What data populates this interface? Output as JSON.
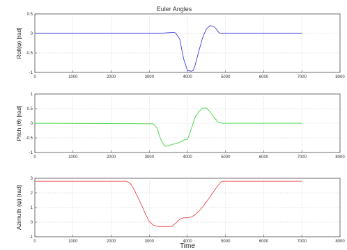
{
  "chart_data": [
    {
      "type": "line",
      "title": "Euler Angles",
      "ylabel": "Roll(φ) [rad]",
      "xlabel": "",
      "xlim": [
        0,
        8000
      ],
      "ylim": [
        -1,
        0.5
      ],
      "xticks": [
        0,
        1000,
        2000,
        3000,
        4000,
        5000,
        6000,
        7000,
        8000
      ],
      "yticks": [
        0.5,
        0,
        -0.5,
        -1
      ],
      "ytick_labels": [
        "0.5",
        "0",
        "-0.5",
        "-1"
      ],
      "grid": true,
      "color": "#3b3bd6",
      "series": [
        {
          "x": [
            0,
            3300,
            3500,
            3650,
            3700,
            3800,
            3900,
            4000,
            4100,
            4150,
            4200,
            4300,
            4400,
            4500,
            4600,
            4700,
            4750,
            4800,
            4850,
            4900,
            7000
          ],
          "y": [
            0,
            0,
            0.02,
            0.03,
            0.0,
            -0.15,
            -0.65,
            -0.95,
            -0.97,
            -0.95,
            -0.82,
            -0.45,
            -0.1,
            0.12,
            0.2,
            0.17,
            0.12,
            0.05,
            0.0,
            0.0,
            0.0
          ]
        }
      ]
    },
    {
      "type": "line",
      "title": "",
      "ylabel": "Pitch (θ) [rad]",
      "xlabel": "",
      "xlim": [
        0,
        8000
      ],
      "ylim": [
        -1,
        1
      ],
      "xticks": [
        0,
        1000,
        2000,
        3000,
        4000,
        5000,
        6000,
        7000,
        8000
      ],
      "yticks": [
        1,
        0.5,
        0,
        -0.5,
        -1
      ],
      "ytick_labels": [
        "1",
        "0.5",
        "0",
        "-0.5",
        "-1"
      ],
      "grid": true,
      "color": "#3fd63f",
      "series": [
        {
          "x": [
            0,
            3100,
            3200,
            3300,
            3400,
            3500,
            3600,
            3700,
            3800,
            3900,
            4000,
            4100,
            4200,
            4300,
            4400,
            4500,
            4600,
            4700,
            4800,
            4900,
            5000,
            7000
          ],
          "y": [
            0,
            -0.02,
            -0.15,
            -0.55,
            -0.78,
            -0.78,
            -0.72,
            -0.7,
            -0.65,
            -0.58,
            -0.55,
            -0.2,
            0.2,
            0.4,
            0.52,
            0.52,
            0.38,
            0.2,
            0.05,
            0.0,
            0.0,
            0.0
          ]
        }
      ]
    },
    {
      "type": "line",
      "title": "",
      "ylabel": "Azimuth (ψ) [rad]",
      "xlabel": "Time",
      "xlim": [
        0,
        8000
      ],
      "ylim": [
        -1,
        3
      ],
      "xticks": [
        0,
        1000,
        2000,
        3000,
        4000,
        5000,
        6000,
        7000,
        8000
      ],
      "yticks": [
        3,
        2,
        1,
        0,
        -1
      ],
      "ytick_labels": [
        "3",
        "2",
        "1",
        "0",
        "-1"
      ],
      "grid": true,
      "color": "#e84a4a",
      "series": [
        {
          "x": [
            0,
            2400,
            2500,
            2600,
            2700,
            2800,
            2900,
            3000,
            3100,
            3200,
            3300,
            3400,
            3500,
            3600,
            3700,
            3800,
            3900,
            4000,
            4100,
            4200,
            4300,
            4400,
            4500,
            4600,
            4700,
            4800,
            4900,
            7000
          ],
          "y": [
            2.8,
            2.8,
            2.65,
            2.25,
            1.7,
            1.15,
            0.55,
            0.05,
            -0.2,
            -0.28,
            -0.3,
            -0.3,
            -0.3,
            -0.28,
            -0.05,
            0.2,
            0.3,
            0.3,
            0.35,
            0.5,
            0.75,
            1.05,
            1.4,
            1.75,
            2.15,
            2.5,
            2.8,
            2.8
          ]
        }
      ]
    }
  ]
}
